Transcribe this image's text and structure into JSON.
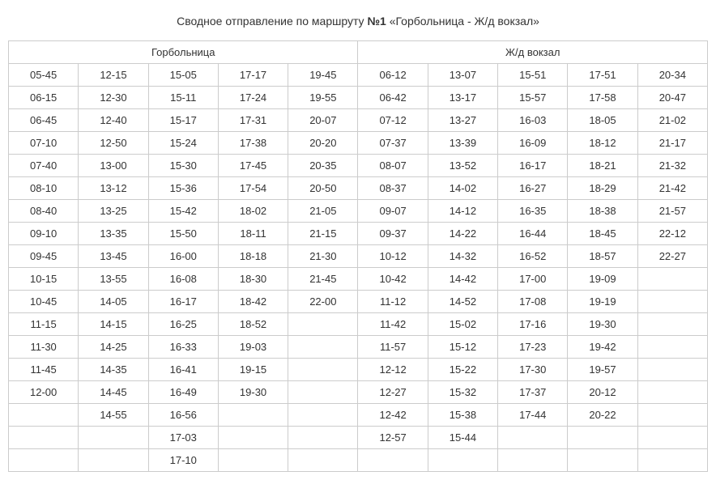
{
  "title_prefix": "Сводное отправление по маршруту ",
  "route_label": "№1",
  "title_suffix": " «Горбольница - Ж/д вокзал»",
  "headers": [
    "Горбольница",
    "Ж/д вокзал"
  ],
  "columns_per_section": 5,
  "table": {
    "type": "table",
    "border_color": "#cccccc",
    "text_color": "#333333",
    "background_color": "#ffffff",
    "font_size": 13,
    "rows": [
      [
        "05-45",
        "12-15",
        "15-05",
        "17-17",
        "19-45",
        "06-12",
        "13-07",
        "15-51",
        "17-51",
        "20-34"
      ],
      [
        "06-15",
        "12-30",
        "15-11",
        "17-24",
        "19-55",
        "06-42",
        "13-17",
        "15-57",
        "17-58",
        "20-47"
      ],
      [
        "06-45",
        "12-40",
        "15-17",
        "17-31",
        "20-07",
        "07-12",
        "13-27",
        "16-03",
        "18-05",
        "21-02"
      ],
      [
        "07-10",
        "12-50",
        "15-24",
        "17-38",
        "20-20",
        "07-37",
        "13-39",
        "16-09",
        "18-12",
        "21-17"
      ],
      [
        "07-40",
        "13-00",
        "15-30",
        "17-45",
        "20-35",
        "08-07",
        "13-52",
        "16-17",
        "18-21",
        "21-32"
      ],
      [
        "08-10",
        "13-12",
        "15-36",
        "17-54",
        "20-50",
        "08-37",
        "14-02",
        "16-27",
        "18-29",
        "21-42"
      ],
      [
        "08-40",
        "13-25",
        "15-42",
        "18-02",
        "21-05",
        "09-07",
        "14-12",
        "16-35",
        "18-38",
        "21-57"
      ],
      [
        "09-10",
        "13-35",
        "15-50",
        "18-11",
        "21-15",
        "09-37",
        "14-22",
        "16-44",
        "18-45",
        "22-12"
      ],
      [
        "09-45",
        "13-45",
        "16-00",
        "18-18",
        "21-30",
        "10-12",
        "14-32",
        "16-52",
        "18-57",
        "22-27"
      ],
      [
        "10-15",
        "13-55",
        "16-08",
        "18-30",
        "21-45",
        "10-42",
        "14-42",
        "17-00",
        "19-09",
        ""
      ],
      [
        "10-45",
        "14-05",
        "16-17",
        "18-42",
        "22-00",
        "11-12",
        "14-52",
        "17-08",
        "19-19",
        ""
      ],
      [
        "11-15",
        "14-15",
        "16-25",
        "18-52",
        "",
        "11-42",
        "15-02",
        "17-16",
        "19-30",
        ""
      ],
      [
        "11-30",
        "14-25",
        "16-33",
        "19-03",
        "",
        "11-57",
        "15-12",
        "17-23",
        "19-42",
        ""
      ],
      [
        "11-45",
        "14-35",
        "16-41",
        "19-15",
        "",
        "12-12",
        "15-22",
        "17-30",
        "19-57",
        ""
      ],
      [
        "12-00",
        "14-45",
        "16-49",
        "19-30",
        "",
        "12-27",
        "15-32",
        "17-37",
        "20-12",
        ""
      ],
      [
        "",
        "14-55",
        "16-56",
        "",
        "",
        "12-42",
        "15-38",
        "17-44",
        "20-22",
        ""
      ],
      [
        "",
        "",
        "17-03",
        "",
        "",
        "12-57",
        "15-44",
        "",
        "",
        ""
      ],
      [
        "",
        "",
        "17-10",
        "",
        "",
        "",
        "",
        "",
        "",
        ""
      ]
    ]
  }
}
